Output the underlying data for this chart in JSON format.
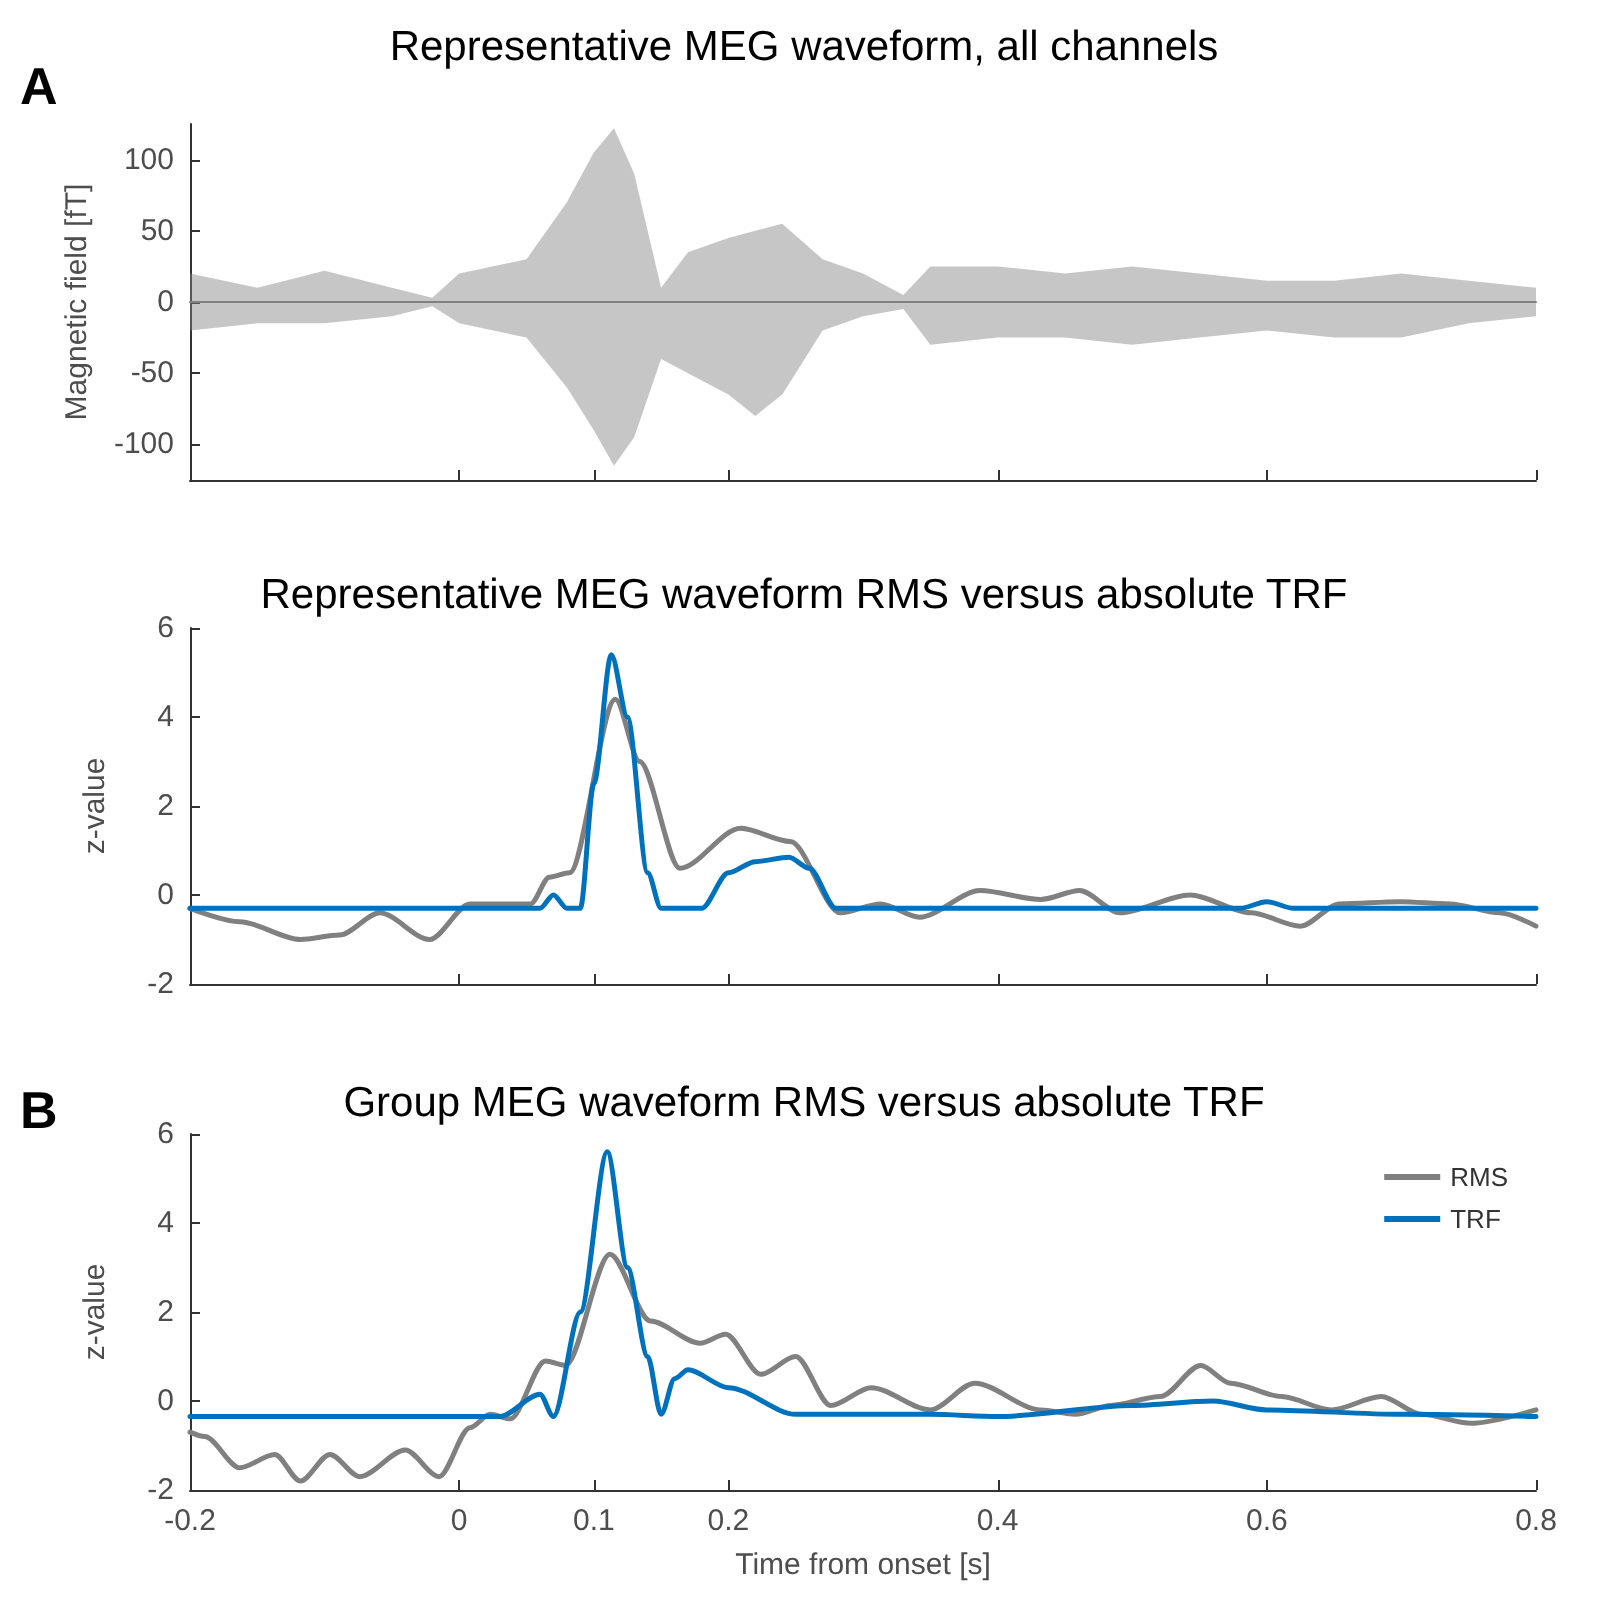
{
  "chart_data": [
    {
      "type": "line",
      "title": "Representative MEG waveform, all channels",
      "ylabel": "Magnetic field [fT]",
      "annotations": [
        "A"
      ],
      "xlim": [
        -0.2,
        0.8
      ],
      "xticks": [
        -0.2,
        0,
        0.1,
        0.2,
        0.4,
        0.6,
        0.8
      ],
      "ylim": [
        -125,
        125
      ],
      "yticks": [
        -100,
        -50,
        0,
        50,
        100
      ],
      "tick_labels": "y",
      "grid": false,
      "legend": false,
      "marker": "none",
      "line_style": "solid",
      "series": [
        {
          "color": "#808080",
          "x": [
            -0.2,
            -0.15,
            -0.1,
            -0.05,
            -0.02,
            0,
            0.05,
            0.08,
            0.1,
            0.115,
            0.13,
            0.15,
            0.17,
            0.2,
            0.22,
            0.24,
            0.27,
            0.3,
            0.33,
            0.35,
            0.4,
            0.45,
            0.5,
            0.55,
            0.6,
            0.65,
            0.7,
            0.75,
            0.8
          ],
          "values": [
            0,
            0,
            0,
            0,
            0,
            0,
            0,
            0,
            0,
            0,
            0,
            0,
            0,
            0,
            0,
            0,
            0,
            0,
            0,
            0,
            0,
            0,
            0,
            0,
            0,
            0,
            0,
            0,
            0
          ],
          "upper": [
            20,
            10,
            22,
            10,
            3,
            20,
            30,
            70,
            105,
            122,
            90,
            10,
            35,
            45,
            50,
            55,
            30,
            20,
            5,
            25,
            25,
            20,
            25,
            20,
            15,
            15,
            20,
            15,
            10
          ],
          "lower": [
            -20,
            -15,
            -15,
            -10,
            -3,
            -15,
            -25,
            -60,
            -90,
            -115,
            -95,
            -40,
            -50,
            -65,
            -80,
            -65,
            -20,
            -10,
            -5,
            -30,
            -25,
            -25,
            -30,
            -25,
            -20,
            -25,
            -25,
            -15,
            -10
          ]
        }
      ]
    },
    {
      "type": "line",
      "title": "Representative MEG waveform RMS versus absolute TRF",
      "ylabel": "z-value",
      "xlim": [
        -0.2,
        0.8
      ],
      "xticks": [
        -0.2,
        0,
        0.1,
        0.2,
        0.4,
        0.6,
        0.8
      ],
      "ylim": [
        -2,
        6
      ],
      "yticks": [
        -2,
        0,
        2,
        4,
        6
      ],
      "tick_labels": "y",
      "grid": false,
      "legend": false,
      "marker": "none",
      "line_style": "solid",
      "series": [
        {
          "color": "#808080",
          "x": [
            -0.2,
            -0.163,
            -0.118,
            -0.089,
            -0.059,
            -0.022,
            0.008,
            0.053,
            0.067,
            0.082,
            0.116,
            0.134,
            0.164,
            0.209,
            0.246,
            0.283,
            0.313,
            0.342,
            0.387,
            0.432,
            0.461,
            0.491,
            0.543,
            0.588,
            0.625,
            0.654,
            0.699,
            0.736,
            0.773,
            0.8
          ],
          "values": [
            -0.3,
            -0.6,
            -1.0,
            -0.9,
            -0.4,
            -1.0,
            -0.2,
            -0.2,
            0.4,
            0.5,
            4.4,
            3.0,
            0.6,
            1.5,
            1.2,
            -0.4,
            -0.2,
            -0.5,
            0.1,
            -0.1,
            0.1,
            -0.4,
            0.0,
            -0.4,
            -0.7,
            -0.2,
            -0.15,
            -0.2,
            -0.4,
            -0.7
          ]
        },
        {
          "color": "#0072bd",
          "x": [
            -0.2,
            0.06,
            0.07,
            0.08,
            0.09,
            0.1,
            0.113,
            0.125,
            0.14,
            0.15,
            0.18,
            0.2,
            0.22,
            0.245,
            0.26,
            0.28,
            0.58,
            0.6,
            0.62,
            0.8
          ],
          "values": [
            -0.3,
            -0.3,
            0.0,
            -0.3,
            -0.3,
            2.5,
            5.4,
            4.0,
            0.5,
            -0.3,
            -0.3,
            0.5,
            0.75,
            0.85,
            0.6,
            -0.3,
            -0.3,
            -0.15,
            -0.3,
            -0.3
          ]
        }
      ]
    },
    {
      "type": "line",
      "title": "Group MEG waveform RMS versus absolute TRF",
      "xlabel": "Time from onset [s]",
      "ylabel": "z-value",
      "annotations": [
        "B"
      ],
      "xlim": [
        -0.2,
        0.8
      ],
      "xticks": [
        -0.2,
        0,
        0.1,
        0.2,
        0.4,
        0.6,
        0.8
      ],
      "ylim": [
        -2,
        6
      ],
      "yticks": [
        -2,
        0,
        2,
        4,
        6
      ],
      "grid": false,
      "legend": "top right",
      "marker": "none",
      "line_style": "solid",
      "series": [
        {
          "name": "RMS",
          "color": "#808080",
          "x": [
            -0.2,
            -0.189,
            -0.163,
            -0.137,
            -0.118,
            -0.096,
            -0.074,
            -0.04,
            -0.015,
            0.008,
            0.023,
            0.038,
            0.064,
            0.079,
            0.112,
            0.142,
            0.179,
            0.198,
            0.224,
            0.25,
            0.276,
            0.306,
            0.35,
            0.383,
            0.432,
            0.458,
            0.484,
            0.521,
            0.551,
            0.573,
            0.611,
            0.648,
            0.685,
            0.715,
            0.752,
            0.8
          ],
          "values": [
            -0.7,
            -0.8,
            -1.5,
            -1.2,
            -1.8,
            -1.2,
            -1.7,
            -1.1,
            -1.7,
            -0.6,
            -0.3,
            -0.4,
            0.9,
            0.8,
            3.3,
            1.8,
            1.3,
            1.5,
            0.6,
            1.0,
            -0.1,
            0.3,
            -0.2,
            0.4,
            -0.2,
            -0.3,
            -0.1,
            0.1,
            0.8,
            0.4,
            0.1,
            -0.2,
            0.1,
            -0.3,
            -0.5,
            -0.2
          ]
        },
        {
          "name": "TRF",
          "color": "#0072bd",
          "x": [
            -0.2,
            0.03,
            0.06,
            0.07,
            0.09,
            0.11,
            0.125,
            0.14,
            0.15,
            0.16,
            0.17,
            0.2,
            0.25,
            0.35,
            0.4,
            0.5,
            0.56,
            0.6,
            0.7,
            0.8
          ],
          "values": [
            -0.35,
            -0.35,
            0.15,
            -0.35,
            2.0,
            5.6,
            3.0,
            1.0,
            -0.3,
            0.5,
            0.7,
            0.3,
            -0.3,
            -0.3,
            -0.35,
            -0.1,
            0.0,
            -0.2,
            -0.3,
            -0.35
          ]
        }
      ]
    }
  ]
}
